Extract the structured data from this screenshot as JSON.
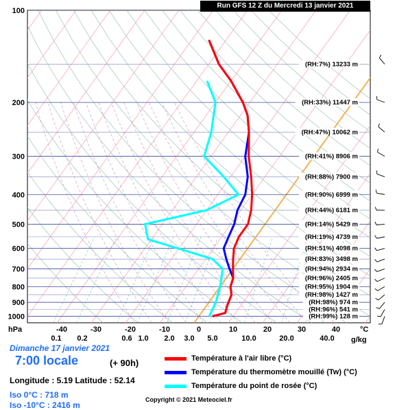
{
  "header": {
    "run_title": "Run GFS 12 Z du Mercredi 13 janvier 2021"
  },
  "info": {
    "date": "Dimanche 17 janvier 2021",
    "local_time": "7:00 locale",
    "lead": "(+ 90h)",
    "coords": "Longitude : 5.19   Latitude : 52.14",
    "iso0": "Iso 0°C : 718 m",
    "iso10": "Iso -10°C : 2416 m",
    "copyright": "Copyright © 2021 Meteociel.fr"
  },
  "legend": [
    {
      "label": "Température à l'air libre (°C)",
      "color": "#ff0000"
    },
    {
      "label": "Température du thermomètre mouillé (Tw) (°C)",
      "color": "#0000ff"
    },
    {
      "label": "Température du point de rosée (°C)",
      "color": "#00ffff"
    }
  ],
  "chart_data": {
    "type": "line",
    "title": "Run GFS 12 Z du Mercredi 13 janvier 2021",
    "xlabel": "°C",
    "ylabel": "hPa",
    "xlim": [
      -50,
      50
    ],
    "ylim": [
      1050,
      100
    ],
    "y_scale": "log",
    "x_ticks": [
      -40,
      -30,
      -20,
      -10,
      0,
      10,
      20,
      30,
      40
    ],
    "y_ticks": [
      100,
      200,
      300,
      400,
      500,
      600,
      700,
      800,
      900,
      1000
    ],
    "mixing_ratio_label": "g/kg",
    "mixing_ratio_ticks": [
      "0.1",
      "0.2",
      "0.6",
      "1.0",
      "2.0",
      "3.0",
      "5.0",
      "10.0",
      "20.0",
      "40.0"
    ],
    "series": [
      {
        "name": "Température à l'air libre (°C)",
        "color": "#ff0000",
        "points": [
          [
            4,
            1000
          ],
          [
            7,
            975
          ],
          [
            6,
            920
          ],
          [
            5,
            850
          ],
          [
            3,
            800
          ],
          [
            2,
            750
          ],
          [
            0,
            700
          ],
          [
            -2,
            650
          ],
          [
            -4,
            600
          ],
          [
            -5,
            550
          ],
          [
            -5,
            500
          ],
          [
            -7,
            450
          ],
          [
            -10,
            400
          ],
          [
            -14,
            350
          ],
          [
            -19,
            300
          ],
          [
            -24,
            250
          ],
          [
            -28,
            220
          ],
          [
            -32,
            200
          ],
          [
            -40,
            170
          ],
          [
            -47,
            150
          ],
          [
            -55,
            125
          ]
        ]
      },
      {
        "name": "Température du thermomètre mouillé (Tw) (°C)",
        "color": "#0000ff",
        "points": [
          [
            4,
            1000
          ],
          [
            7,
            975
          ],
          [
            6,
            920
          ],
          [
            5,
            850
          ],
          [
            3,
            800
          ],
          [
            2,
            750
          ],
          [
            -1,
            700
          ],
          [
            -4,
            650
          ],
          [
            -7,
            600
          ],
          [
            -8,
            550
          ],
          [
            -9,
            500
          ],
          [
            -11,
            450
          ],
          [
            -12,
            400
          ],
          [
            -15,
            350
          ],
          [
            -20,
            300
          ],
          [
            -24,
            250
          ],
          [
            -28,
            220
          ],
          [
            -32,
            200
          ],
          [
            -40,
            170
          ],
          [
            -47,
            150
          ],
          [
            -55,
            125
          ]
        ]
      },
      {
        "name": "Température du point de rosée (°C)",
        "color": "#00ffff",
        "points": [
          [
            3,
            1000
          ],
          [
            2,
            900
          ],
          [
            0,
            800
          ],
          [
            -3,
            700
          ],
          [
            -8,
            650
          ],
          [
            -31,
            560
          ],
          [
            -35,
            500
          ],
          [
            -20,
            450
          ],
          [
            -14,
            400
          ],
          [
            -22,
            350
          ],
          [
            -32,
            300
          ],
          [
            -35,
            250
          ],
          [
            -40,
            200
          ],
          [
            -47,
            170
          ]
        ]
      }
    ],
    "levels": [
      {
        "label": "(RH:99%) 128 m",
        "p": 1000,
        "wind_dir": 200
      },
      {
        "label": "(RH:96%) 541 m",
        "p": 950,
        "wind_dir": 210
      },
      {
        "label": "(RH:98%) 974 m",
        "p": 900,
        "wind_dir": 220
      },
      {
        "label": "(RH:98%) 1427 m",
        "p": 850,
        "wind_dir": 230
      },
      {
        "label": "(RH:95%) 1904 m",
        "p": 800,
        "wind_dir": 240
      },
      {
        "label": "(RH:96%) 2405 m",
        "p": 750,
        "wind_dir": 245
      },
      {
        "label": "(RH:94%) 2934 m",
        "p": 700,
        "wind_dir": 250
      },
      {
        "label": "(RH:83%) 3498 m",
        "p": 650,
        "wind_dir": 250
      },
      {
        "label": "(RH:51%) 4098 m",
        "p": 600,
        "wind_dir": 255
      },
      {
        "label": "(RH:19%) 4739 m",
        "p": 550,
        "wind_dir": 260
      },
      {
        "label": "(RH:14%) 5429 m",
        "p": 500,
        "wind_dir": 265
      },
      {
        "label": "(RH:44%) 6181 m",
        "p": 450,
        "wind_dir": 270
      },
      {
        "label": "(RH:90%) 6999 m",
        "p": 400,
        "wind_dir": 280
      },
      {
        "label": "(RH:88%) 7900 m",
        "p": 350,
        "wind_dir": 290
      },
      {
        "label": "(RH:41%) 8906 m",
        "p": 300,
        "wind_dir": 300
      },
      {
        "label": "(RH:47%) 10062 m",
        "p": 250,
        "wind_dir": 310
      },
      {
        "label": "(RH:33%) 11447 m",
        "p": 200,
        "wind_dir": 290
      },
      {
        "label": "(RH:7%) 13233 m",
        "p": 150,
        "wind_dir": 320
      }
    ],
    "grid": true
  }
}
